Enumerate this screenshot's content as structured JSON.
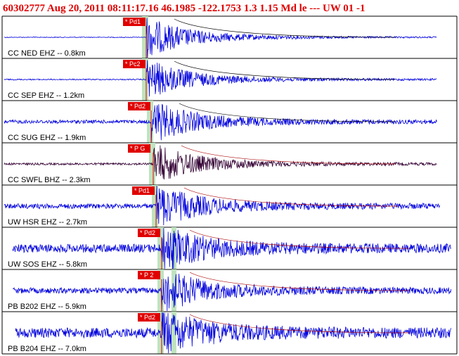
{
  "header": {
    "title": "60302777 Aug 20, 2011 08:11:17.16   46.1985 -122.1753  1.3 1.15 Md le --- UW 01  -1"
  },
  "traces": [
    {
      "label": "CC NED EHZ -- 0.8km",
      "pick": "* Pd1",
      "color": "#0000dd"
    },
    {
      "label": "CC SEP EHZ -- 1.2km",
      "pick": "* Pc2",
      "color": "#0000dd"
    },
    {
      "label": "CC SUG EHZ -- 1.9km",
      "pick": "* Pd2",
      "color": "#0000dd"
    },
    {
      "label": "CC SWFL BHZ -- 2.3km",
      "pick": "* P G",
      "color": "#330033"
    },
    {
      "label": "UW HSR EHZ -- 2.7km",
      "pick": "* Pd1",
      "color": "#0000dd"
    },
    {
      "label": "UW SOS EHZ -- 5.8km",
      "pick": "* Pd2",
      "color": "#0000dd"
    },
    {
      "label": "PB B202 EHZ -- 5.9km",
      "pick": "* P 2",
      "color": "#0000dd"
    },
    {
      "label": "PB B204 EHZ -- 7.0km",
      "pick": "* Pd2",
      "color": "#0000dd"
    }
  ]
}
